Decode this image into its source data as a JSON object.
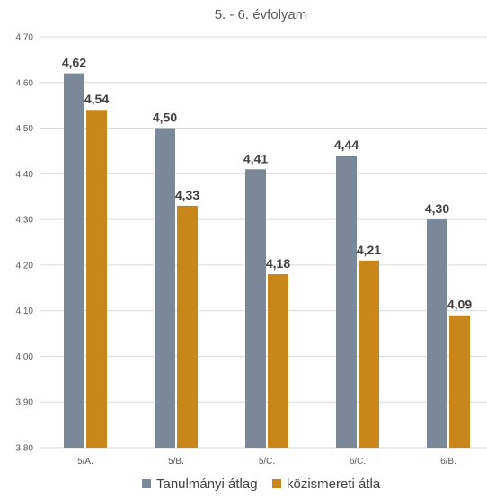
{
  "chart_data": {
    "type": "bar",
    "title": "5. - 6. évfolyam",
    "categories": [
      "5/A.",
      "5/B.",
      "5/C.",
      "6/C.",
      "6/B."
    ],
    "series": [
      {
        "name": "Tanulmányi átlag",
        "color": "#7a8899",
        "values": [
          4.62,
          4.5,
          4.41,
          4.44,
          4.3
        ],
        "labels": [
          "4,62",
          "4,50",
          "4,41",
          "4,44",
          "4,30"
        ]
      },
      {
        "name": "közismereti átla",
        "color": "#c9861a",
        "values": [
          4.54,
          4.33,
          4.18,
          4.21,
          4.09
        ],
        "labels": [
          "4,54",
          "4,33",
          "4,18",
          "4,21",
          "4,09"
        ]
      }
    ],
    "ylim": [
      3.8,
      4.7
    ],
    "yticks": [
      3.8,
      3.9,
      4.0,
      4.1,
      4.2,
      4.3,
      4.4,
      4.5,
      4.6,
      4.7
    ],
    "ytick_labels": [
      "3,80",
      "3,90",
      "4,00",
      "4,10",
      "4,20",
      "4,30",
      "4,40",
      "4,50",
      "4,60",
      "4,70"
    ],
    "grid": true,
    "legend_position": "bottom",
    "xlabel": "",
    "ylabel": ""
  }
}
